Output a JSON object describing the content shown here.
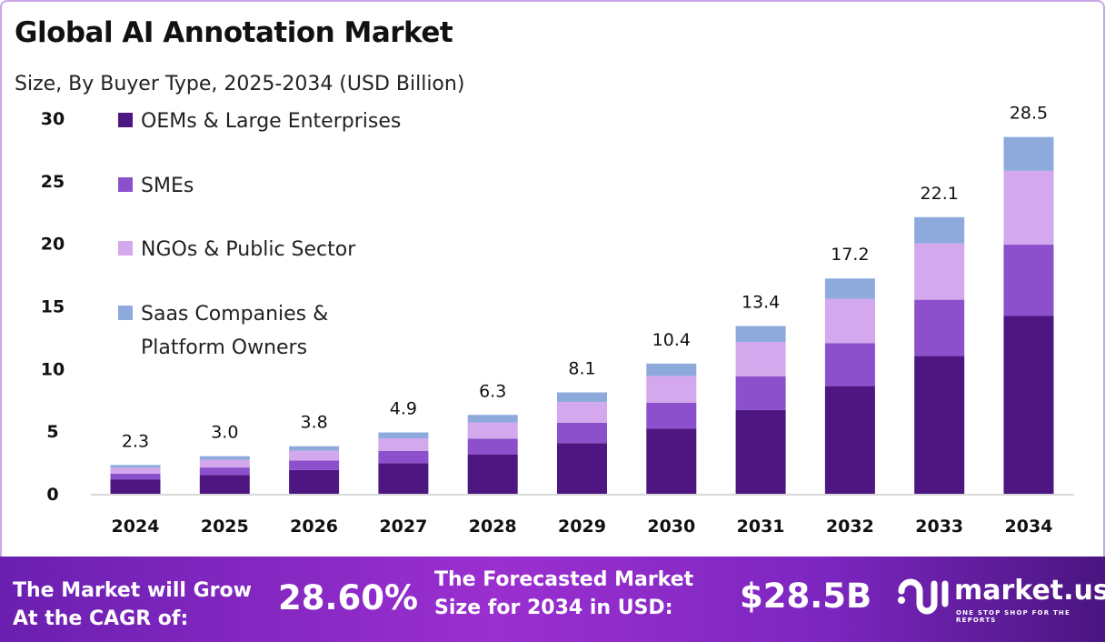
{
  "chart_data": {
    "type": "bar",
    "stacked": true,
    "title": "Global AI Annotation Market",
    "subtitle": "Size, By Buyer Type, 2025-2034 (USD Billion)",
    "categories": [
      "2024",
      "2025",
      "2026",
      "2027",
      "2028",
      "2029",
      "2030",
      "2031",
      "2032",
      "2033",
      "2034"
    ],
    "totals": [
      "2.3",
      "3.0",
      "3.8",
      "4.9",
      "6.3",
      "8.1",
      "10.4",
      "13.4",
      "17.2",
      "22.1",
      "28.5"
    ],
    "series": [
      {
        "name": "OEMs & Large Enterprises",
        "color": "#4e1680",
        "values": [
          1.15,
          1.5,
          1.9,
          2.45,
          3.15,
          4.05,
          5.2,
          6.7,
          8.6,
          11.0,
          14.2
        ]
      },
      {
        "name": "SMEs",
        "color": "#8c50cc",
        "values": [
          0.46,
          0.6,
          0.76,
          0.98,
          1.26,
          1.62,
          2.08,
          2.68,
          3.44,
          4.5,
          5.7
        ]
      },
      {
        "name": "NGOs & Public Sector",
        "color": "#d3a8ec",
        "values": [
          0.47,
          0.62,
          0.78,
          1.0,
          1.29,
          1.66,
          2.13,
          2.75,
          3.53,
          4.5,
          5.9
        ]
      },
      {
        "name": "Saas Companies & Platform Owners",
        "color": "#8eaadd",
        "values": [
          0.22,
          0.28,
          0.36,
          0.47,
          0.6,
          0.77,
          0.99,
          1.27,
          1.63,
          2.1,
          2.7
        ]
      }
    ],
    "legend_lines": [
      [
        "OEMs & Large Enterprises"
      ],
      [
        "SMEs"
      ],
      [
        "NGOs & Public Sector"
      ],
      [
        "Saas Companies &",
        "Platform Owners"
      ]
    ],
    "yticks": [
      "0",
      "5",
      "10",
      "15",
      "20",
      "25",
      "30"
    ],
    "ylim": [
      0,
      30
    ],
    "grid": false,
    "legend_position": "top-left"
  },
  "footer": {
    "cagr_label_1": "The Market will Grow",
    "cagr_label_2": "At the CAGR of:",
    "cagr_value": "28.60%",
    "forecast_label_1": "The Forecasted Market",
    "forecast_label_2": "Size for 2034 in USD:",
    "forecast_value": "$28.5B",
    "brand": "market.us",
    "brand_tagline": "ONE STOP SHOP FOR THE REPORTS"
  }
}
